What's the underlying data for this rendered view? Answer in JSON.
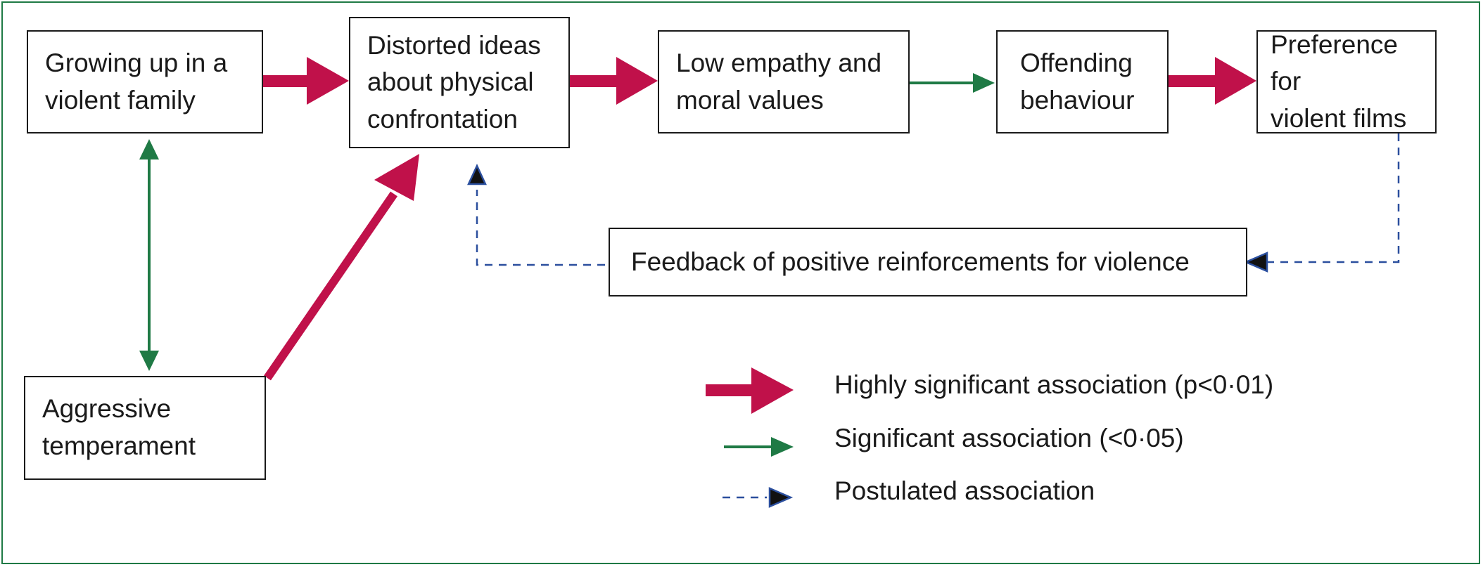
{
  "diagram": {
    "nodes": {
      "growing_up": "Growing up in a\nviolent family",
      "distorted_ideas": "Distorted ideas\nabout physical\nconfrontation",
      "low_empathy": "Low empathy and\nmoral values",
      "offending": "Offending\nbehaviour",
      "preference": "Preference for\nviolent films",
      "feedback": "Feedback of positive reinforcements for violence",
      "aggressive": "Aggressive\ntemperament"
    },
    "edges": [
      {
        "from": "growing_up",
        "to": "distorted_ideas",
        "type": "highly-significant"
      },
      {
        "from": "distorted_ideas",
        "to": "low_empathy",
        "type": "highly-significant"
      },
      {
        "from": "low_empathy",
        "to": "offending",
        "type": "significant"
      },
      {
        "from": "offending",
        "to": "preference",
        "type": "highly-significant"
      },
      {
        "from": "aggressive",
        "to": "distorted_ideas",
        "type": "highly-significant"
      },
      {
        "from": "growing_up",
        "to": "aggressive",
        "type": "significant",
        "bidirectional": true
      },
      {
        "from": "preference",
        "to": "feedback",
        "type": "postulated"
      },
      {
        "from": "feedback",
        "to": "distorted_ideas",
        "type": "postulated"
      }
    ]
  },
  "legend": {
    "highly_significant": "Highly significant association (p<0·01)",
    "significant": "Significant association (<0·05)",
    "postulated": "Postulated association"
  },
  "colors": {
    "highly_significant": "#c0114a",
    "significant": "#1f7a45",
    "postulated": "#2b4f9e",
    "frame": "#1f7a45"
  }
}
